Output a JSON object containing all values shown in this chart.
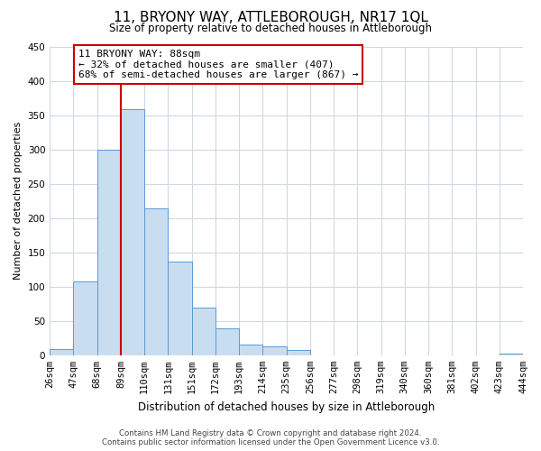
{
  "title": "11, BRYONY WAY, ATTLEBOROUGH, NR17 1QL",
  "subtitle": "Size of property relative to detached houses in Attleborough",
  "xlabel": "Distribution of detached houses by size in Attleborough",
  "ylabel": "Number of detached properties",
  "bin_labels": [
    "26sqm",
    "47sqm",
    "68sqm",
    "89sqm",
    "110sqm",
    "131sqm",
    "151sqm",
    "172sqm",
    "193sqm",
    "214sqm",
    "235sqm",
    "256sqm",
    "277sqm",
    "298sqm",
    "319sqm",
    "340sqm",
    "360sqm",
    "381sqm",
    "402sqm",
    "423sqm",
    "444sqm"
  ],
  "bar_heights": [
    9,
    108,
    300,
    358,
    214,
    137,
    70,
    39,
    16,
    13,
    7,
    0,
    0,
    0,
    0,
    0,
    0,
    0,
    0,
    3
  ],
  "bar_color": "#c9ddf0",
  "bar_edge_color": "#5b9bd5",
  "annotation_title": "11 BRYONY WAY: 88sqm",
  "annotation_line1": "← 32% of detached houses are smaller (407)",
  "annotation_line2": "68% of semi-detached houses are larger (867) →",
  "annotation_box_color": "#ffffff",
  "annotation_box_edge": "#cc0000",
  "ylim": [
    0,
    450
  ],
  "yticks": [
    0,
    50,
    100,
    150,
    200,
    250,
    300,
    350,
    400,
    450
  ],
  "vline_color": "#cc0000",
  "vline_x": 3,
  "footer1": "Contains HM Land Registry data © Crown copyright and database right 2024.",
  "footer2": "Contains public sector information licensed under the Open Government Licence v3.0.",
  "bg_color": "#ffffff",
  "grid_color": "#d0d8e4",
  "title_fontsize": 11,
  "subtitle_fontsize": 8.5,
  "xlabel_fontsize": 8.5,
  "ylabel_fontsize": 8,
  "tick_fontsize": 7.5,
  "annot_fontsize": 8
}
